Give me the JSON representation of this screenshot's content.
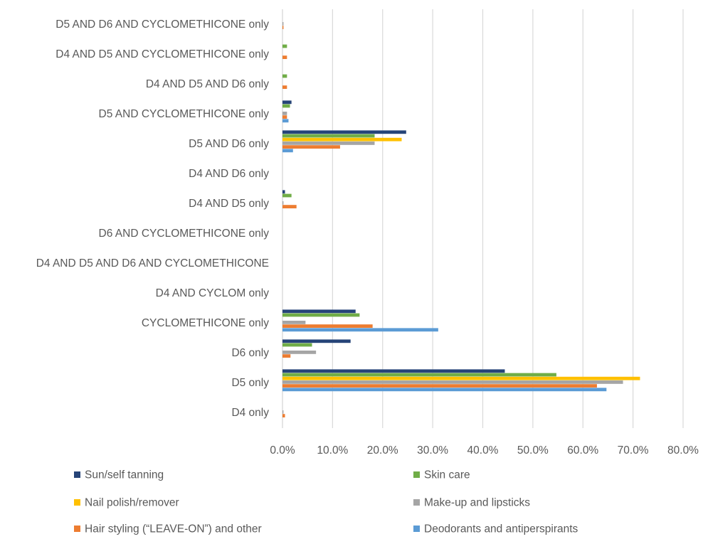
{
  "chart_data": {
    "type": "bar",
    "orientation": "horizontal",
    "categories": [
      "D5 AND D6 AND CYCLOMETHICONE only",
      "D4 AND D5 AND CYCLOMETHICONE only",
      "D4 AND D5 AND D6 only",
      "D5 AND CYCLOMETHICONE only",
      "D5 AND D6 only",
      "D4 AND D6 only",
      "D4 AND D5 only",
      "D6 AND CYCLOMETHICONE only",
      "D4 AND D5 AND D6 AND CYCLOMETHICONE",
      "D4 AND CYCLOM only",
      "CYCLOMETHICONE only",
      "D6 only",
      "D5 only",
      "D4 only"
    ],
    "series": [
      {
        "name": "Sun/self tanning",
        "color": "#264478",
        "values": [
          0,
          0,
          0,
          1.8,
          24.7,
          0,
          0.5,
          0,
          0,
          0,
          14.6,
          13.6,
          44.4,
          0
        ]
      },
      {
        "name": "Skin care",
        "color": "#70AD47",
        "values": [
          0,
          0.9,
          0.9,
          1.5,
          18.4,
          0,
          1.8,
          0,
          0,
          0,
          15.4,
          5.9,
          54.7,
          0
        ]
      },
      {
        "name": "Nail polish/remover",
        "color": "#FFC000",
        "values": [
          0,
          0,
          0,
          0,
          23.8,
          0,
          0,
          0,
          0,
          0,
          0,
          0,
          71.4,
          0
        ]
      },
      {
        "name": "Make-up and lipsticks",
        "color": "#A5A5A5",
        "values": [
          0.2,
          0,
          0,
          0.9,
          18.4,
          0,
          0.2,
          0,
          0,
          0,
          4.6,
          6.7,
          68.0,
          0.2
        ]
      },
      {
        "name": "Hair styling  (“LEAVE-ON”) and other",
        "color": "#ED7D31",
        "values": [
          0.2,
          0.9,
          0.9,
          0.9,
          11.5,
          0,
          2.8,
          0,
          0,
          0,
          18.0,
          1.6,
          62.8,
          0.5
        ]
      },
      {
        "name": "Deodorants and antiperspirants",
        "color": "#5B9BD5",
        "values": [
          0,
          0,
          0,
          1.2,
          2.1,
          0,
          0,
          0,
          0,
          0,
          31.1,
          0,
          64.7,
          0
        ]
      }
    ],
    "xlim": [
      0,
      80
    ],
    "xticks": [
      "0.0%",
      "10.0%",
      "20.0%",
      "30.0%",
      "40.0%",
      "50.0%",
      "60.0%",
      "70.0%",
      "80.0%"
    ],
    "grid": true,
    "legend_position": "bottom",
    "title": "",
    "xlabel": "",
    "ylabel": ""
  }
}
